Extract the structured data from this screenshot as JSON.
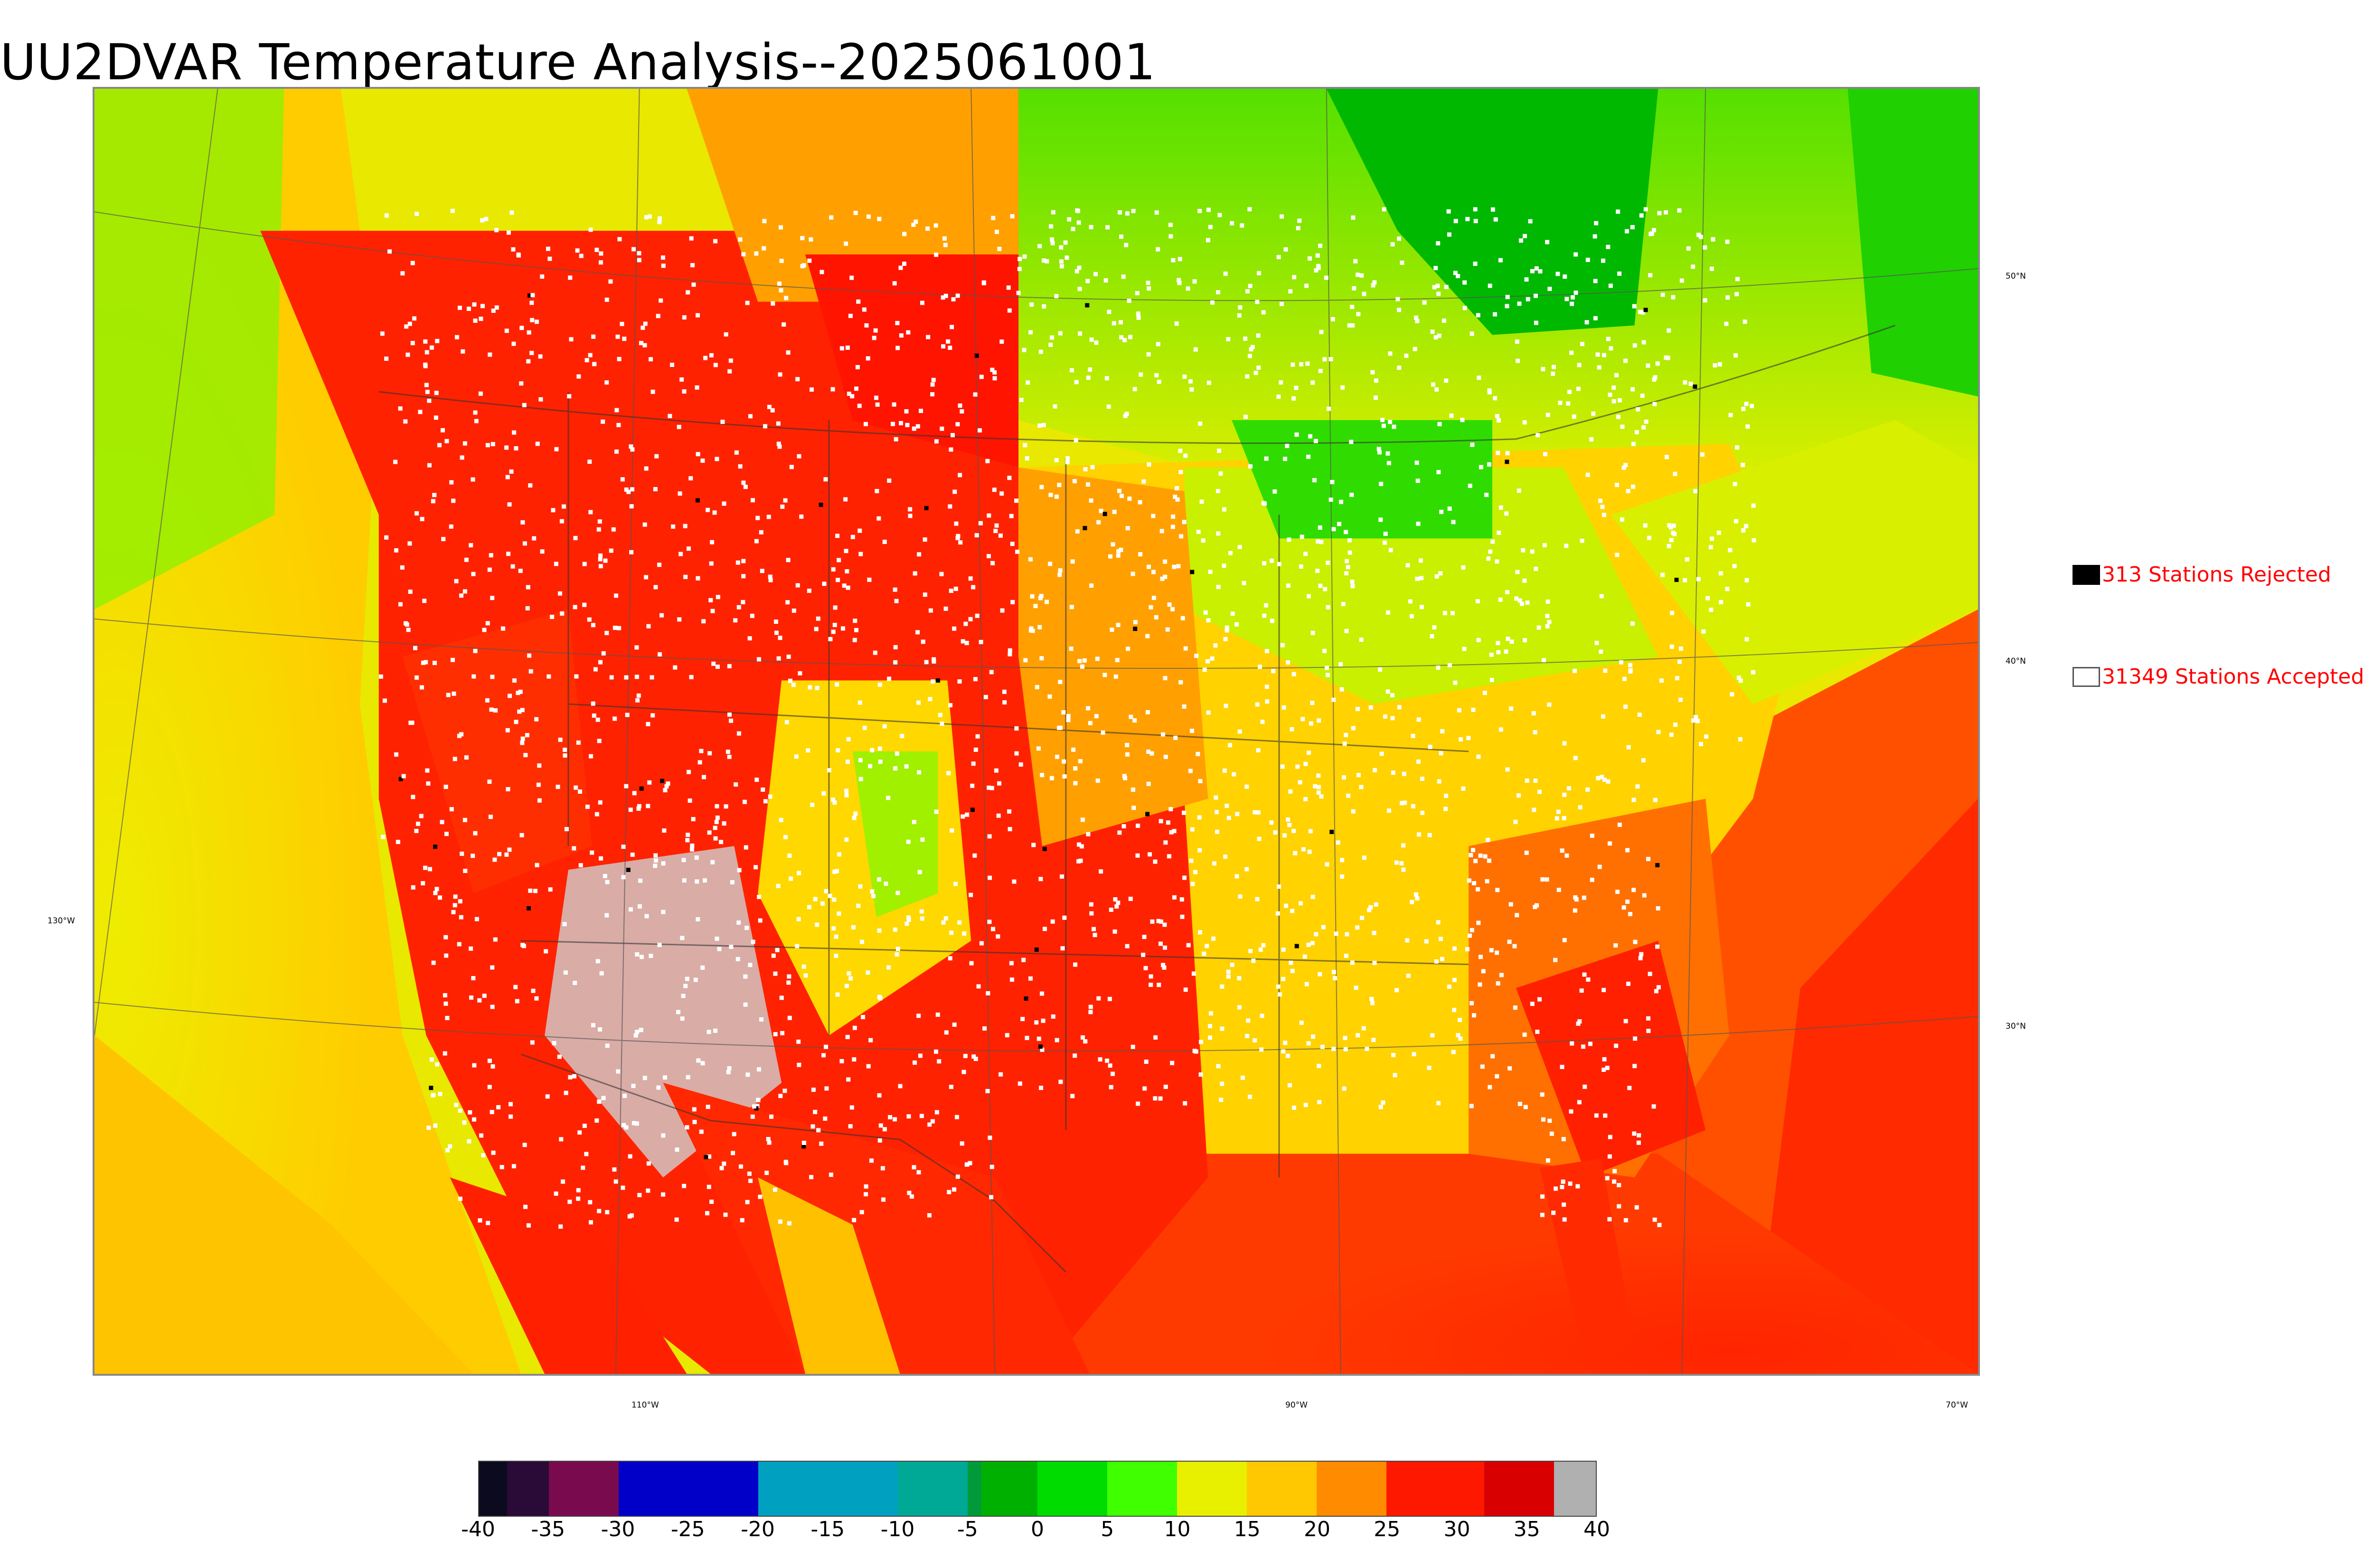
{
  "title": "UU2DVAR Temperature Analysis--2025061001",
  "axis_labels": {
    "lon": [
      "130°W",
      "110°W",
      "90°W",
      "70°W"
    ],
    "lat": [
      "50°N",
      "40°N",
      "30°N"
    ]
  },
  "legend": {
    "rejected": "313 Stations Rejected",
    "accepted": "31349 Stations Accepted"
  },
  "colorbar": {
    "ticks": [
      "-40",
      "-35",
      "-30",
      "-25",
      "-20",
      "-15",
      "-10",
      "-5",
      "0",
      "5",
      "10",
      "15",
      "20",
      "25",
      "30",
      "35",
      "40"
    ],
    "colors": {
      "c_m40": "#0b0a1e",
      "c_m38": "#2a0a36",
      "c_m35": "#7a0a4e",
      "c_m30": "#0000c8",
      "c_m20": "#00a0c0",
      "c_m10": "#00a896",
      "c_m5": "#009a3a",
      "c_0": "#00b000",
      "c_5": "#00dc00",
      "c_10": "#40ff00",
      "c_15": "#e8f000",
      "c_20": "#ffc800",
      "c_25": "#ff8c00",
      "c_28": "#ff1800",
      "c_35": "#d80000",
      "c_38": "#b0b0b0"
    }
  },
  "map_colors": {
    "ocean_pacific": "#e2e600",
    "ocean_gulf": "#ff1a00",
    "canada_north": "#7ce80a",
    "hudson": "#00b500",
    "plains_hot": "#ff2200",
    "east_mild": "#ffd000",
    "desert_gray": "#c8c8c8"
  }
}
